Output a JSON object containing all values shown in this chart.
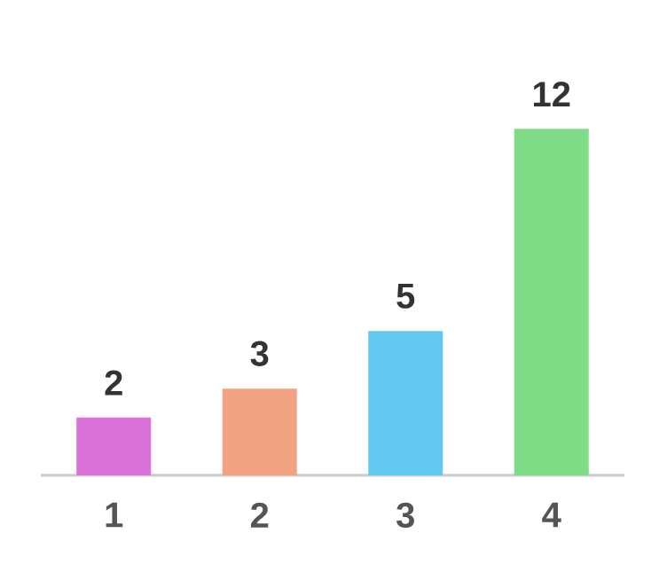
{
  "chart_data": {
    "type": "bar",
    "categories": [
      "1",
      "2",
      "3",
      "4"
    ],
    "values": [
      2,
      3,
      5,
      12
    ],
    "colors": [
      "#db72d9",
      "#f2a482",
      "#62c8f0",
      "#7fdd88"
    ],
    "data_labels": true
  }
}
